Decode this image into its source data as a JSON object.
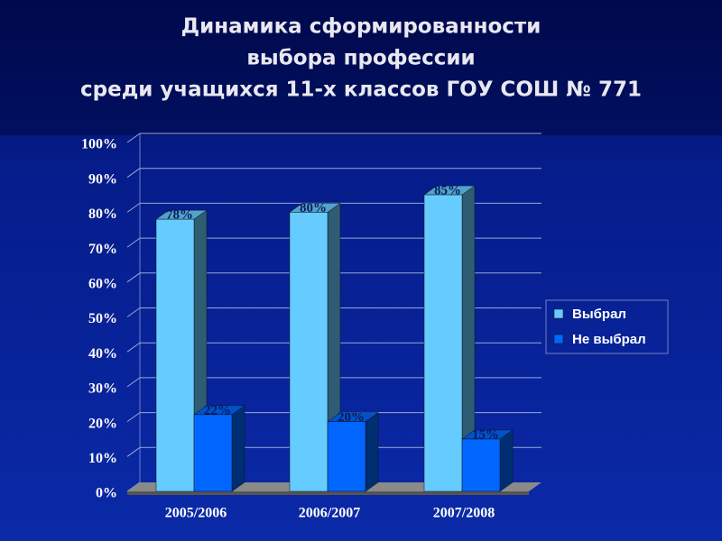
{
  "chart_data": {
    "type": "bar3d",
    "title": [
      "Динамика сформированности",
      "выбора профессии",
      "среди учащихся 11-х классов ГОУ СОШ № 771"
    ],
    "categories": [
      "2005/2006",
      "2006/2007",
      "2007/2008"
    ],
    "series": [
      {
        "name": "Выбрал",
        "color": "#66ccff",
        "values": [
          78,
          80,
          85
        ],
        "value_labels": [
          "78%",
          "80%",
          "85%"
        ]
      },
      {
        "name": "Не выбрал",
        "color": "#0066ff",
        "values": [
          22,
          20,
          15
        ],
        "value_labels": [
          "22%",
          "20%",
          "15%"
        ]
      }
    ],
    "ylim": [
      0,
      100
    ],
    "yticks": [
      {
        "value": 0,
        "label": "0%"
      },
      {
        "value": 10,
        "label": "10%"
      },
      {
        "value": 20,
        "label": "20%"
      },
      {
        "value": 30,
        "label": "30%"
      },
      {
        "value": 40,
        "label": "40%"
      },
      {
        "value": 50,
        "label": "50%"
      },
      {
        "value": 60,
        "label": "60%"
      },
      {
        "value": 70,
        "label": "70%"
      },
      {
        "value": 80,
        "label": "80%"
      },
      {
        "value": 90,
        "label": "90%"
      },
      {
        "value": 100,
        "label": "100%"
      }
    ],
    "grid": true,
    "legend": "right"
  }
}
